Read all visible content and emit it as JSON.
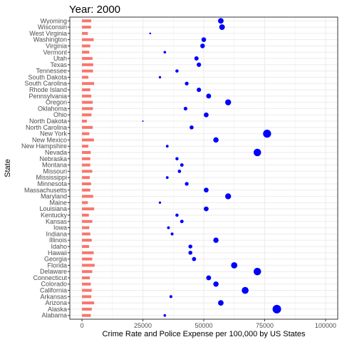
{
  "chart_data": {
    "type": "scatter",
    "title": "Year: 2000",
    "xlabel": "Crime Rate and Police Expense per 100,000 by US States",
    "ylabel": "State",
    "xlim": [
      -5000,
      105000
    ],
    "x_ticks": [
      0,
      25000,
      50000,
      75000,
      100000
    ],
    "x_tick_labels": [
      "0",
      "25000",
      "50000",
      "75000",
      "100000"
    ],
    "grid": true,
    "legend": "none",
    "colors": {
      "bar": "#f8766d",
      "point": "#0000ff",
      "grid": "#ebebeb",
      "panel_border": "#333333"
    },
    "states": [
      "Alabama",
      "Alaska",
      "Arizona",
      "Arkansas",
      "California",
      "Colorado",
      "Connecticut",
      "Delaware",
      "Florida",
      "Georgia",
      "Hawaii",
      "Idaho",
      "Illinois",
      "Indiana",
      "Iowa",
      "Kansas",
      "Kentucky",
      "Louisiana",
      "Maine",
      "Maryland",
      "Massachusetts",
      "Minnesota",
      "Mississippi",
      "Missouri",
      "Montana",
      "Nebraska",
      "Nevada",
      "New Hampshire",
      "New Mexico",
      "New York",
      "North Carolina",
      "North Dakota",
      "Ohio",
      "Oklahoma",
      "Oregon",
      "Pennsylvania",
      "Rhode Island",
      "South Carolina",
      "South Dakota",
      "Tennessee",
      "Texas",
      "Utah",
      "Vermont",
      "Virginia",
      "Washington",
      "West Virginia",
      "Wisconsin",
      "Wyoming"
    ],
    "series": [
      {
        "mark": "bar",
        "values": [
          3600,
          4000,
          5000,
          3800,
          4000,
          3600,
          3200,
          4200,
          5200,
          4200,
          4800,
          2900,
          4000,
          3400,
          3000,
          4200,
          2800,
          5000,
          2400,
          4600,
          3400,
          3700,
          3200,
          4200,
          3400,
          3400,
          3600,
          2600,
          4900,
          3000,
          4400,
          2000,
          3900,
          4500,
          4400,
          3800,
          3400,
          5000,
          2600,
          4500,
          4600,
          4300,
          3000,
          3400,
          4800,
          2400,
          3700,
          3800
        ]
      },
      {
        "mark": "point",
        "values": [
          34000,
          80000,
          57000,
          36500,
          67000,
          55000,
          52000,
          72000,
          62500,
          46000,
          44500,
          44500,
          55000,
          37000,
          35500,
          41000,
          39000,
          51000,
          32000,
          60000,
          51000,
          43000,
          35000,
          40000,
          41000,
          39000,
          72000,
          35000,
          55000,
          76000,
          45000,
          25000,
          51000,
          42500,
          60000,
          52000,
          48000,
          43000,
          32000,
          39000,
          48000,
          47000,
          34000,
          49500,
          50000,
          28000,
          57500,
          57000
        ]
      }
    ]
  }
}
